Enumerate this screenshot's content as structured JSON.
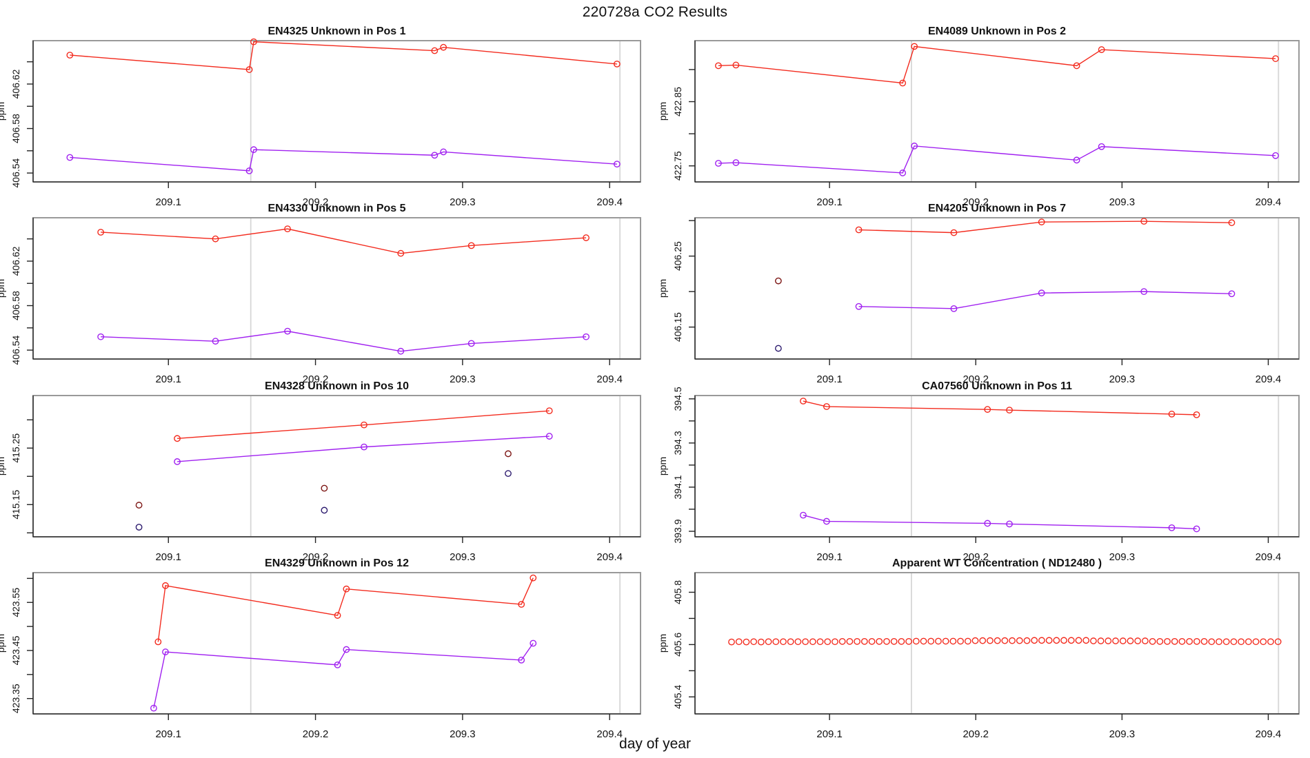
{
  "figure_title": "220728a  CO2 Results",
  "x_axis_title": "day of year",
  "y_axis_title": "ppm",
  "colors": {
    "red": "#f32b1e",
    "purple": "#a020f0",
    "darkred": "#7c1513",
    "navy": "#2c1a6e",
    "ref_line": "#d6d6d6",
    "box": "#999999",
    "axis": "#222222",
    "text": "#111111"
  },
  "chart_data": {
    "type": "line",
    "x_domain": [
      209.008,
      209.421
    ],
    "x_ticks": [
      {
        "v": 209.1,
        "label": "209.1"
      },
      {
        "v": 209.2,
        "label": "209.2"
      },
      {
        "v": 209.3,
        "label": "209.3"
      },
      {
        "v": 209.4,
        "label": "209.4"
      }
    ],
    "ref_lines_x": [
      209.156,
      209.407
    ],
    "subplots": [
      {
        "id": "EN4325",
        "title": "EN4325   Unknown in Pos 1",
        "ylim": [
          406.532,
          406.659
        ],
        "y_ticks": [
          {
            "v": 406.54,
            "label": "406.54"
          },
          {
            "v": 406.56
          },
          {
            "v": 406.58,
            "label": "406.58"
          },
          {
            "v": 406.6
          },
          {
            "v": 406.62,
            "label": "406.62"
          },
          {
            "v": 406.64
          }
        ],
        "series": [
          {
            "name": "sample-red",
            "color": "red",
            "line": true,
            "points": [
              [
                209.033,
                406.646
              ],
              [
                209.155,
                406.633
              ],
              [
                209.158,
                406.658
              ],
              [
                209.281,
                406.65
              ],
              [
                209.287,
                406.653
              ],
              [
                209.405,
                406.638
              ]
            ]
          },
          {
            "name": "sample-purple",
            "color": "purple",
            "line": true,
            "points": [
              [
                209.033,
                406.554
              ],
              [
                209.155,
                406.542
              ],
              [
                209.158,
                406.561
              ],
              [
                209.281,
                406.556
              ],
              [
                209.287,
                406.559
              ],
              [
                209.405,
                406.548
              ]
            ]
          }
        ]
      },
      {
        "id": "EN4089",
        "title": "EN4089   Unknown in Pos 2",
        "ylim": [
          422.725,
          422.945
        ],
        "y_ticks": [
          {
            "v": 422.75,
            "label": "422.75"
          },
          {
            "v": 422.8
          },
          {
            "v": 422.85,
            "label": "422.85"
          },
          {
            "v": 422.9
          }
        ],
        "series": [
          {
            "name": "sample-red",
            "color": "red",
            "line": true,
            "points": [
              [
                209.024,
                422.906
              ],
              [
                209.036,
                422.907
              ],
              [
                209.15,
                422.879
              ],
              [
                209.158,
                422.936
              ],
              [
                209.269,
                422.906
              ],
              [
                209.286,
                422.931
              ],
              [
                209.405,
                422.917
              ]
            ]
          },
          {
            "name": "sample-purple",
            "color": "purple",
            "line": true,
            "points": [
              [
                209.024,
                422.754
              ],
              [
                209.036,
                422.755
              ],
              [
                209.15,
                422.739
              ],
              [
                209.158,
                422.781
              ],
              [
                209.269,
                422.759
              ],
              [
                209.286,
                422.78
              ],
              [
                209.405,
                422.766
              ]
            ]
          }
        ]
      },
      {
        "id": "EN4330",
        "title": "EN4330   Unknown in Pos 5",
        "ylim": [
          406.532,
          406.659
        ],
        "y_ticks": [
          {
            "v": 406.54,
            "label": "406.54"
          },
          {
            "v": 406.56
          },
          {
            "v": 406.58,
            "label": "406.58"
          },
          {
            "v": 406.6
          },
          {
            "v": 406.62,
            "label": "406.62"
          },
          {
            "v": 406.64
          }
        ],
        "series": [
          {
            "name": "sample-red",
            "color": "red",
            "line": true,
            "points": [
              [
                209.054,
                406.646
              ],
              [
                209.132,
                406.64
              ],
              [
                209.181,
                406.649
              ],
              [
                209.258,
                406.627
              ],
              [
                209.306,
                406.634
              ],
              [
                209.384,
                406.641
              ]
            ]
          },
          {
            "name": "sample-purple",
            "color": "purple",
            "line": true,
            "points": [
              [
                209.054,
                406.552
              ],
              [
                209.132,
                406.548
              ],
              [
                209.181,
                406.557
              ],
              [
                209.258,
                406.539
              ],
              [
                209.306,
                406.546
              ],
              [
                209.384,
                406.552
              ]
            ]
          }
        ]
      },
      {
        "id": "EN4205",
        "title": "EN4205   Unknown in Pos 7",
        "ylim": [
          406.105,
          406.304
        ],
        "y_ticks": [
          {
            "v": 406.15,
            "label": "406.15"
          },
          {
            "v": 406.2
          },
          {
            "v": 406.25,
            "label": "406.25"
          },
          {
            "v": 406.3
          }
        ],
        "series": [
          {
            "name": "sample-red",
            "color": "red",
            "line": true,
            "points": [
              [
                209.12,
                406.287
              ],
              [
                209.185,
                406.283
              ],
              [
                209.245,
                406.298
              ],
              [
                209.315,
                406.299
              ],
              [
                209.375,
                406.297
              ]
            ]
          },
          {
            "name": "sample-purple",
            "color": "purple",
            "line": true,
            "points": [
              [
                209.12,
                406.179
              ],
              [
                209.185,
                406.176
              ],
              [
                209.245,
                406.198
              ],
              [
                209.315,
                406.2
              ],
              [
                209.375,
                406.197
              ]
            ]
          },
          {
            "name": "outlier-darkred",
            "color": "darkred",
            "line": false,
            "points": [
              [
                209.065,
                406.215
              ]
            ]
          },
          {
            "name": "outlier-navy",
            "color": "navy",
            "line": false,
            "points": [
              [
                209.065,
                406.12
              ]
            ]
          }
        ]
      },
      {
        "id": "EN4328",
        "title": "EN4328   Unknown in Pos 10",
        "ylim": [
          415.093,
          415.343
        ],
        "y_ticks": [
          {
            "v": 415.1
          },
          {
            "v": 415.15,
            "label": "415.15"
          },
          {
            "v": 415.2
          },
          {
            "v": 415.25,
            "label": "415.25"
          },
          {
            "v": 415.3
          }
        ],
        "series": [
          {
            "name": "sample-red",
            "color": "red",
            "line": true,
            "points": [
              [
                209.106,
                415.267
              ],
              [
                209.233,
                415.291
              ],
              [
                209.359,
                415.316
              ]
            ]
          },
          {
            "name": "sample-purple",
            "color": "purple",
            "line": true,
            "points": [
              [
                209.106,
                415.226
              ],
              [
                209.233,
                415.252
              ],
              [
                209.359,
                415.271
              ]
            ]
          },
          {
            "name": "outlier-darkred",
            "color": "darkred",
            "line": false,
            "points": [
              [
                209.08,
                415.149
              ],
              [
                209.206,
                415.179
              ],
              [
                209.331,
                415.24
              ]
            ]
          },
          {
            "name": "outlier-navy",
            "color": "navy",
            "line": false,
            "points": [
              [
                209.08,
                415.11
              ],
              [
                209.206,
                415.14
              ],
              [
                209.331,
                415.205
              ]
            ]
          }
        ]
      },
      {
        "id": "CA07560",
        "title": "CA07560   Unknown in Pos 11",
        "ylim": [
          393.875,
          394.515
        ],
        "y_ticks": [
          {
            "v": 393.9,
            "label": "393.9"
          },
          {
            "v": 394.0
          },
          {
            "v": 394.1,
            "label": "394.1"
          },
          {
            "v": 394.2
          },
          {
            "v": 394.3,
            "label": "394.3"
          },
          {
            "v": 394.4
          },
          {
            "v": 394.5,
            "label": "394.5"
          }
        ],
        "series": [
          {
            "name": "sample-red",
            "color": "red",
            "line": true,
            "points": [
              [
                209.082,
                394.49
              ],
              [
                209.098,
                394.465
              ],
              [
                209.208,
                394.452
              ],
              [
                209.223,
                394.449
              ],
              [
                209.334,
                394.431
              ],
              [
                209.351,
                394.428
              ]
            ]
          },
          {
            "name": "sample-purple",
            "color": "purple",
            "line": true,
            "points": [
              [
                209.082,
                393.973
              ],
              [
                209.098,
                393.945
              ],
              [
                209.208,
                393.936
              ],
              [
                209.223,
                393.933
              ],
              [
                209.334,
                393.916
              ],
              [
                209.351,
                393.911
              ]
            ]
          }
        ]
      },
      {
        "id": "EN4329",
        "title": "EN4329   Unknown in Pos 12",
        "ylim": [
          423.318,
          423.612
        ],
        "y_ticks": [
          {
            "v": 423.35,
            "label": "423.35"
          },
          {
            "v": 423.4
          },
          {
            "v": 423.45,
            "label": "423.45"
          },
          {
            "v": 423.5
          },
          {
            "v": 423.55,
            "label": "423.55"
          },
          {
            "v": 423.6
          }
        ],
        "series": [
          {
            "name": "sample-red",
            "color": "red",
            "line": true,
            "points": [
              [
                209.093,
                423.468
              ],
              [
                209.098,
                423.585
              ],
              [
                209.215,
                423.523
              ],
              [
                209.221,
                423.578
              ],
              [
                209.34,
                423.546
              ],
              [
                209.348,
                423.601
              ]
            ]
          },
          {
            "name": "sample-purple",
            "color": "purple",
            "line": true,
            "points": [
              [
                209.09,
                423.33
              ],
              [
                209.098,
                423.447
              ],
              [
                209.215,
                423.42
              ],
              [
                209.221,
                423.452
              ],
              [
                209.34,
                423.43
              ],
              [
                209.348,
                423.465
              ]
            ]
          }
        ]
      },
      {
        "id": "ND12480",
        "title": "Apparent WT Concentration ( ND12480 )",
        "ylim": [
          405.335,
          405.875
        ],
        "y_ticks": [
          {
            "v": 405.4,
            "label": "405.4"
          },
          {
            "v": 405.5
          },
          {
            "v": 405.6,
            "label": "405.6"
          },
          {
            "v": 405.7
          },
          {
            "v": 405.8,
            "label": "405.8"
          }
        ],
        "series": [
          {
            "name": "wt-sample",
            "color": "red",
            "line": false,
            "points_seq": {
              "x0": 209.033,
              "dx": 0.00505,
              "y": [
                405.61,
                405.611,
                405.61,
                405.611,
                405.61,
                405.611,
                405.611,
                405.611,
                405.611,
                405.611,
                405.611,
                405.611,
                405.611,
                405.611,
                405.611,
                405.612,
                405.612,
                405.612,
                405.612,
                405.612,
                405.612,
                405.612,
                405.612,
                405.612,
                405.612,
                405.613,
                405.613,
                405.613,
                405.613,
                405.613,
                405.613,
                405.613,
                405.613,
                405.615,
                405.615,
                405.615,
                405.615,
                405.615,
                405.615,
                405.615,
                405.615,
                405.616,
                405.616,
                405.616,
                405.616,
                405.616,
                405.616,
                405.616,
                405.616,
                405.614,
                405.614,
                405.614,
                405.614,
                405.614,
                405.614,
                405.614,
                405.614,
                405.612,
                405.612,
                405.612,
                405.612,
                405.612,
                405.612,
                405.612,
                405.612,
                405.611,
                405.611,
                405.611,
                405.611,
                405.611,
                405.611,
                405.611,
                405.611,
                405.611,
                405.611
              ]
            }
          }
        ]
      }
    ]
  }
}
